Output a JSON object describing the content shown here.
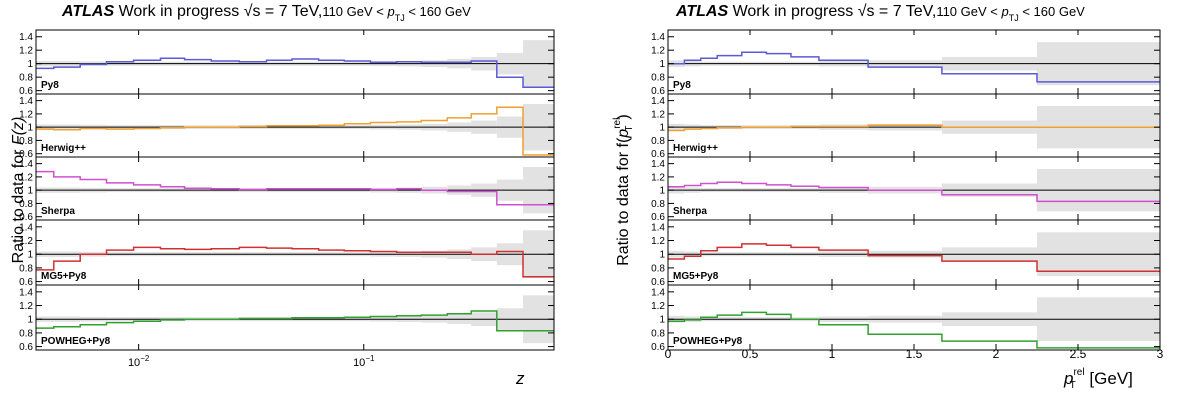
{
  "chart_data": [
    {
      "type": "line",
      "title": {
        "experiment": "ATLAS",
        "status": "Work in progress",
        "energy": "√s = 7 TeV,",
        "range": "110 GeV < p_TJ < 160 GeV",
        "range_pre": "110 GeV < ",
        "range_p": "p",
        "range_sub": "TJ",
        "range_post": " < 160 GeV"
      },
      "ylabel": "Ratio to data for F(z)",
      "ylabel_parts": {
        "pre": "Ratio to data for ",
        "fn": "F",
        "arg": "(z)"
      },
      "xlabel": "z",
      "xscale": "log",
      "xlim": [
        0.0035,
        0.7
      ],
      "ylim": [
        0.55,
        1.5
      ],
      "xticks": [
        {
          "value": 0.01,
          "base": "10",
          "exp": "−2"
        },
        {
          "value": 0.1,
          "base": "10",
          "exp": "−1"
        }
      ],
      "yticks": [
        0.6,
        0.8,
        1,
        1.2,
        1.4
      ],
      "ytick_labels": [
        "0.6",
        "0.8",
        "1",
        "1.2",
        "1.4"
      ],
      "bin_edges": [
        0.0035,
        0.0042,
        0.0055,
        0.0072,
        0.0095,
        0.0125,
        0.016,
        0.021,
        0.028,
        0.037,
        0.048,
        0.063,
        0.082,
        0.107,
        0.14,
        0.18,
        0.235,
        0.3,
        0.39,
        0.51,
        0.7
      ],
      "uncertainty": [
        0.04,
        0.04,
        0.035,
        0.03,
        0.03,
        0.03,
        0.03,
        0.03,
        0.03,
        0.03,
        0.03,
        0.03,
        0.03,
        0.035,
        0.04,
        0.05,
        0.07,
        0.1,
        0.16,
        0.35
      ],
      "series": [
        {
          "name": "Py8",
          "color": "#5b5bd6",
          "values": [
            0.93,
            0.95,
            0.99,
            1.03,
            1.05,
            1.08,
            1.06,
            1.04,
            1.03,
            1.05,
            1.07,
            1.05,
            1.04,
            1.02,
            1.03,
            1.02,
            1.02,
            1.04,
            0.8,
            0.65
          ]
        },
        {
          "name": "Herwig++",
          "color": "#f0a030",
          "values": [
            0.97,
            0.96,
            0.98,
            0.97,
            0.98,
            0.99,
            1.0,
            1.0,
            1.01,
            1.02,
            1.02,
            1.03,
            1.05,
            1.07,
            1.08,
            1.1,
            1.14,
            1.2,
            1.3,
            0.58
          ]
        },
        {
          "name": "Sherpa",
          "color": "#d050d0",
          "values": [
            1.28,
            1.2,
            1.16,
            1.11,
            1.08,
            1.05,
            1.03,
            1.02,
            1.01,
            1.02,
            1.02,
            1.02,
            1.02,
            1.01,
            1.02,
            1.0,
            0.98,
            0.98,
            0.78,
            0.78
          ]
        },
        {
          "name": "MG5+Py8",
          "color": "#d03030",
          "values": [
            0.77,
            0.9,
            1.0,
            1.06,
            1.1,
            1.08,
            1.07,
            1.08,
            1.1,
            1.09,
            1.08,
            1.06,
            1.05,
            1.04,
            1.03,
            1.03,
            1.03,
            1.0,
            1.04,
            0.67
          ]
        },
        {
          "name": "POWHEG+Py8",
          "color": "#30a030",
          "values": [
            0.87,
            0.89,
            0.92,
            0.95,
            0.97,
            0.99,
            1.0,
            1.0,
            1.01,
            1.01,
            1.02,
            1.02,
            1.03,
            1.04,
            1.05,
            1.06,
            1.08,
            1.12,
            0.83,
            0.83
          ]
        }
      ]
    },
    {
      "type": "line",
      "title": {
        "experiment": "ATLAS",
        "status": "Work in progress",
        "energy": "√s = 7 TeV,",
        "range": "110 GeV < p_TJ < 160 GeV",
        "range_pre": "110 GeV < ",
        "range_p": "p",
        "range_sub": "TJ",
        "range_post": " < 160 GeV"
      },
      "ylabel": "Ratio to data for f(p_T^rel)",
      "ylabel_parts": {
        "pre": "Ratio to data for f(",
        "p": "p",
        "sub": "T",
        "sup": "rel",
        "post": ")"
      },
      "xlabel": "p_T^rel [GeV]",
      "xlabel_parts": {
        "p": "p",
        "sub": "T",
        "sup": "rel",
        "post": " [GeV]"
      },
      "xscale": "linear",
      "xlim": [
        0,
        3
      ],
      "ylim": [
        0.55,
        1.5
      ],
      "xticks": [
        {
          "value": 0,
          "label": "0"
        },
        {
          "value": 0.5,
          "label": "0.5"
        },
        {
          "value": 1,
          "label": "1"
        },
        {
          "value": 1.5,
          "label": "1.5"
        },
        {
          "value": 2,
          "label": "2"
        },
        {
          "value": 2.5,
          "label": "2.5"
        },
        {
          "value": 3,
          "label": "3"
        }
      ],
      "yticks": [
        0.6,
        0.8,
        1,
        1.2,
        1.4
      ],
      "ytick_labels": [
        "0.6",
        "0.8",
        "1",
        "1.2",
        "1.4"
      ],
      "bin_edges": [
        0,
        0.1,
        0.2,
        0.3,
        0.45,
        0.6,
        0.75,
        0.92,
        1.22,
        1.67,
        2.25,
        3.0
      ],
      "uncertainty": [
        0.05,
        0.04,
        0.03,
        0.03,
        0.03,
        0.03,
        0.03,
        0.04,
        0.05,
        0.1,
        0.32
      ],
      "series": [
        {
          "name": "Py8",
          "color": "#5b5bd6",
          "values": [
            1.0,
            1.05,
            1.08,
            1.12,
            1.17,
            1.15,
            1.1,
            1.05,
            0.95,
            0.85,
            0.73
          ]
        },
        {
          "name": "Herwig++",
          "color": "#f0a030",
          "values": [
            0.95,
            0.97,
            0.98,
            0.99,
            1.0,
            1.0,
            1.01,
            1.01,
            1.03,
            1.0,
            1.0
          ]
        },
        {
          "name": "Sherpa",
          "color": "#d050d0",
          "values": [
            1.05,
            1.07,
            1.1,
            1.12,
            1.1,
            1.08,
            1.06,
            1.04,
            1.0,
            0.93,
            0.83
          ]
        },
        {
          "name": "MG5+Py8",
          "color": "#d03030",
          "values": [
            0.93,
            0.97,
            1.05,
            1.1,
            1.15,
            1.13,
            1.1,
            1.06,
            0.98,
            0.9,
            0.75
          ]
        },
        {
          "name": "POWHEG+Py8",
          "color": "#30a030",
          "values": [
            0.97,
            0.99,
            1.03,
            1.06,
            1.1,
            1.07,
            1.0,
            0.92,
            0.78,
            0.68,
            0.58
          ]
        }
      ]
    }
  ]
}
